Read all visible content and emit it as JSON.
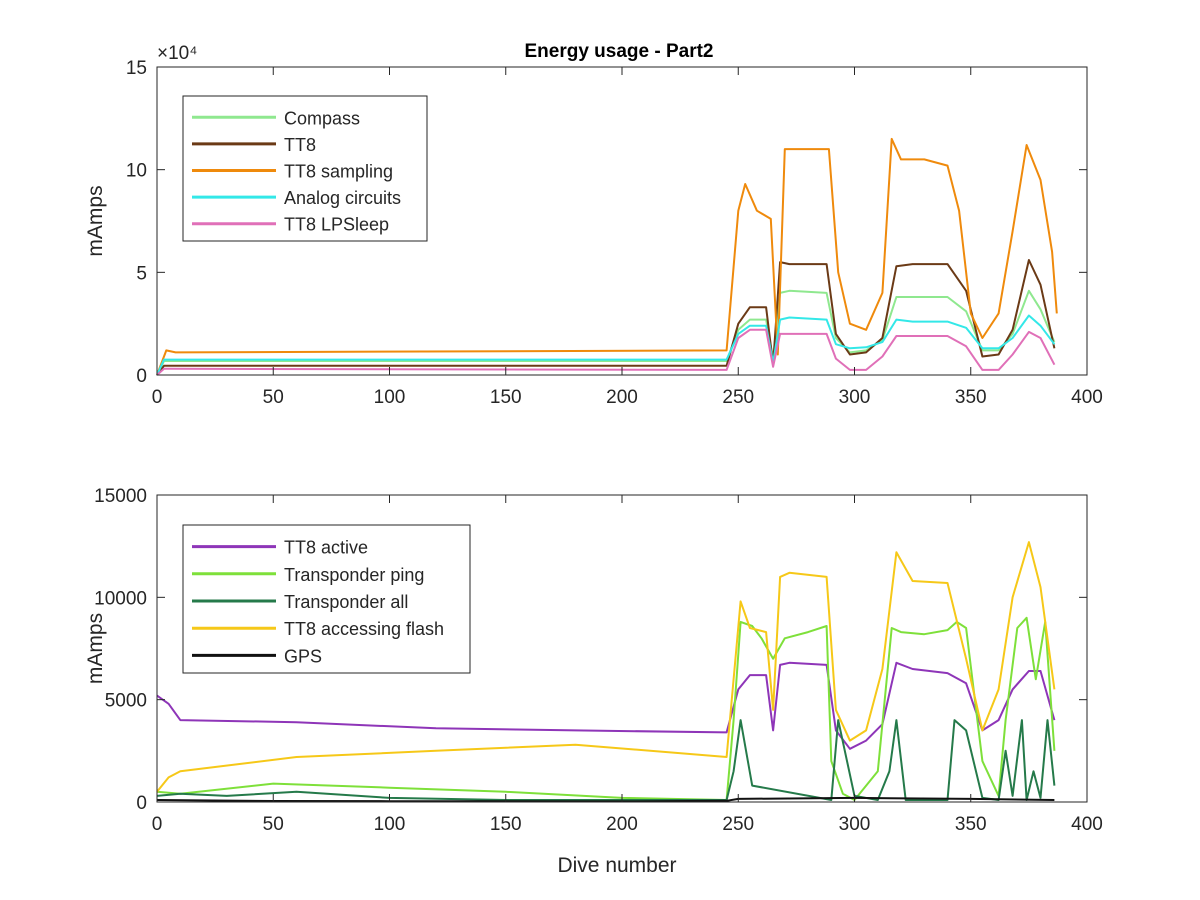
{
  "figure": {
    "title": "Energy usage - Part2",
    "background": "#ffffff"
  },
  "chart_data": [
    {
      "type": "line",
      "title": "Energy usage - Part2",
      "xlabel": "",
      "ylabel": "mAmps",
      "xlim": [
        0,
        400
      ],
      "ylim": [
        0,
        150000
      ],
      "y_exponent_label": "×10⁴",
      "xticks": [
        0,
        50,
        100,
        150,
        200,
        250,
        300,
        350,
        400
      ],
      "xtick_labels": [
        "0",
        "50",
        "100",
        "150",
        "200",
        "250",
        "300",
        "350",
        "400"
      ],
      "yticks": [
        0,
        50000,
        100000,
        150000
      ],
      "ytick_labels": [
        "0",
        "5",
        "10",
        "15"
      ],
      "grid": false,
      "legend_position": "top-left",
      "series": [
        {
          "name": "Compass",
          "color": "#8fe88f",
          "x": [
            0,
            3,
            6,
            245,
            250,
            255,
            262,
            265,
            268,
            272,
            288,
            292,
            298,
            305,
            312,
            318,
            325,
            340,
            348,
            355,
            362,
            368,
            375,
            380,
            386
          ],
          "y": [
            0,
            6800,
            6800,
            6800,
            22000,
            27000,
            27000,
            8000,
            40000,
            41000,
            40000,
            18000,
            11000,
            12000,
            17000,
            38000,
            38000,
            38000,
            31000,
            12000,
            12000,
            20000,
            41000,
            32000,
            16000
          ]
        },
        {
          "name": "TT8",
          "color": "#6b3a16",
          "x": [
            0,
            3,
            6,
            245,
            250,
            255,
            262,
            265,
            268,
            272,
            288,
            292,
            298,
            305,
            312,
            318,
            325,
            340,
            348,
            355,
            362,
            368,
            375,
            380,
            386
          ],
          "y": [
            0,
            4500,
            4500,
            4500,
            25000,
            33000,
            33000,
            5000,
            55000,
            54000,
            54000,
            20000,
            10000,
            11000,
            18000,
            53000,
            54000,
            54000,
            41000,
            9000,
            10000,
            22000,
            56000,
            44000,
            13000
          ]
        },
        {
          "name": "TT8 sampling",
          "color": "#ef8a0c",
          "x": [
            0,
            4,
            8,
            245,
            250,
            253,
            258,
            264,
            267,
            270,
            280,
            289,
            293,
            298,
            305,
            312,
            316,
            320,
            330,
            340,
            345,
            350,
            355,
            362,
            368,
            374,
            380,
            385,
            387
          ],
          "y": [
            0,
            12000,
            11000,
            12000,
            80000,
            93000,
            80000,
            76000,
            10000,
            110000,
            110000,
            110000,
            50000,
            25000,
            22000,
            40000,
            115000,
            105000,
            105000,
            102000,
            80000,
            30000,
            18000,
            30000,
            70000,
            112000,
            95000,
            60000,
            30000
          ]
        },
        {
          "name": "Analog circuits",
          "color": "#33e8e8",
          "x": [
            0,
            3,
            6,
            245,
            250,
            255,
            262,
            265,
            268,
            272,
            288,
            292,
            298,
            305,
            312,
            318,
            325,
            340,
            348,
            355,
            362,
            368,
            375,
            380,
            386
          ],
          "y": [
            0,
            7500,
            7500,
            7500,
            20000,
            24000,
            24000,
            6000,
            27000,
            28000,
            27000,
            15000,
            13000,
            13500,
            16000,
            27000,
            26000,
            26000,
            23000,
            13000,
            13000,
            18000,
            29000,
            24000,
            15000
          ]
        },
        {
          "name": "TT8 LPSleep",
          "color": "#e070b8",
          "x": [
            0,
            3,
            6,
            245,
            250,
            255,
            262,
            265,
            268,
            272,
            288,
            292,
            298,
            305,
            312,
            318,
            325,
            340,
            348,
            355,
            362,
            368,
            375,
            380,
            386
          ],
          "y": [
            0,
            3000,
            3000,
            2500,
            18000,
            22000,
            22000,
            4000,
            20000,
            20000,
            20000,
            8000,
            2500,
            2500,
            9000,
            19000,
            19000,
            19000,
            14000,
            2500,
            2500,
            10000,
            21000,
            18000,
            5000
          ]
        }
      ]
    },
    {
      "type": "line",
      "title": "",
      "xlabel": "Dive number",
      "ylabel": "mAmps",
      "xlim": [
        0,
        400
      ],
      "ylim": [
        0,
        15000
      ],
      "xticks": [
        0,
        50,
        100,
        150,
        200,
        250,
        300,
        350,
        400
      ],
      "xtick_labels": [
        "0",
        "50",
        "100",
        "150",
        "200",
        "250",
        "300",
        "350",
        "400"
      ],
      "yticks": [
        0,
        5000,
        10000,
        15000
      ],
      "ytick_labels": [
        "0",
        "5000",
        "10000",
        "15000"
      ],
      "grid": false,
      "legend_position": "top-left",
      "series": [
        {
          "name": "TT8 active",
          "color": "#8e35b8",
          "x": [
            0,
            5,
            10,
            60,
            120,
            180,
            245,
            250,
            255,
            262,
            265,
            268,
            272,
            288,
            292,
            298,
            305,
            312,
            318,
            325,
            340,
            348,
            355,
            362,
            368,
            375,
            380,
            386
          ],
          "y": [
            5200,
            4800,
            4000,
            3900,
            3600,
            3500,
            3400,
            5500,
            6200,
            6200,
            3500,
            6700,
            6800,
            6700,
            3500,
            2600,
            3000,
            3800,
            6800,
            6500,
            6300,
            5800,
            3500,
            4000,
            5500,
            6400,
            6400,
            4000
          ]
        },
        {
          "name": "Transponder ping",
          "color": "#7ee03a",
          "x": [
            0,
            10,
            50,
            100,
            150,
            200,
            245,
            248,
            251,
            256,
            260,
            265,
            270,
            280,
            288,
            290,
            295,
            300,
            310,
            316,
            320,
            330,
            340,
            344,
            348,
            355,
            362,
            365,
            370,
            374,
            378,
            382,
            386
          ],
          "y": [
            500,
            400,
            900,
            700,
            500,
            200,
            100,
            4000,
            8800,
            8600,
            8000,
            7000,
            8000,
            8300,
            8600,
            2000,
            400,
            100,
            1500,
            8500,
            8300,
            8200,
            8400,
            8800,
            8500,
            2000,
            300,
            4000,
            8500,
            9000,
            6000,
            8800,
            2500
          ]
        },
        {
          "name": "Transponder all",
          "color": "#257a4a",
          "x": [
            0,
            10,
            30,
            60,
            100,
            150,
            200,
            245,
            248,
            251,
            256,
            290,
            293,
            300,
            310,
            315,
            318,
            322,
            340,
            343,
            348,
            355,
            362,
            365,
            368,
            372,
            374,
            377,
            380,
            383,
            386
          ],
          "y": [
            300,
            400,
            300,
            500,
            200,
            100,
            100,
            100,
            1500,
            4000,
            800,
            100,
            4000,
            300,
            100,
            1500,
            4000,
            100,
            100,
            4000,
            3500,
            200,
            100,
            2500,
            300,
            4000,
            100,
            1500,
            200,
            4000,
            800
          ]
        },
        {
          "name": "TT8 accessing flash",
          "color": "#f6c818",
          "x": [
            0,
            5,
            10,
            60,
            120,
            180,
            245,
            248,
            251,
            255,
            262,
            265,
            268,
            272,
            288,
            292,
            298,
            305,
            312,
            318,
            325,
            340,
            348,
            355,
            362,
            368,
            375,
            380,
            386
          ],
          "y": [
            500,
            1200,
            1500,
            2200,
            2500,
            2800,
            2200,
            6000,
            9800,
            8500,
            8300,
            4500,
            11000,
            11200,
            11000,
            4500,
            3000,
            3500,
            6500,
            12200,
            10800,
            10700,
            7000,
            3500,
            5500,
            10000,
            12700,
            10500,
            5500
          ]
        },
        {
          "name": "GPS",
          "color": "#111111",
          "x": [
            0,
            50,
            100,
            150,
            200,
            245,
            250,
            300,
            350,
            386
          ],
          "y": [
            100,
            50,
            40,
            40,
            30,
            60,
            150,
            200,
            150,
            100
          ]
        }
      ]
    }
  ]
}
